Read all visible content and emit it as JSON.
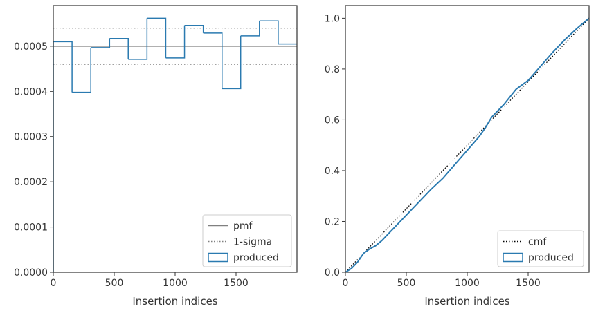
{
  "chart_data": [
    {
      "type": "histogram",
      "xlabel": "Insertion indices",
      "ylabel": "",
      "xlim": [
        0,
        2000
      ],
      "ylim": [
        0,
        0.00059
      ],
      "xticks": [
        0,
        500,
        1000,
        1500
      ],
      "xtick_labels": [
        "0",
        "500",
        "1000",
        "1500"
      ],
      "yticks": [
        0,
        0.0001,
        0.0002,
        0.0003,
        0.0004,
        0.0005
      ],
      "ytick_labels": [
        "0.0000",
        "0.0001",
        "0.0002",
        "0.0003",
        "0.0004",
        "0.0005"
      ],
      "pmf": 0.0005,
      "sigma_lines": [
        0.00046,
        0.00054
      ],
      "bin_edges": [
        0,
        154,
        308,
        462,
        615,
        769,
        923,
        1077,
        1231,
        1385,
        1538,
        1692,
        1846,
        2000
      ],
      "bin_values": [
        0.00051,
        0.000398,
        0.000497,
        0.000517,
        0.000471,
        0.000562,
        0.000474,
        0.000546,
        0.000529,
        0.000406,
        0.000523,
        0.000556,
        0.000505
      ],
      "colors": {
        "produced": "#2a7ab0",
        "pmf": "#808080",
        "sigma": "#808080"
      },
      "legend": {
        "position": "lower-right",
        "entries": [
          {
            "label": "pmf",
            "style": "solid"
          },
          {
            "label": "1-sigma",
            "style": "dotted"
          },
          {
            "label": "produced",
            "style": "patch"
          }
        ]
      }
    },
    {
      "type": "line",
      "xlabel": "Insertion indices",
      "ylabel": "",
      "xlim": [
        0,
        2000
      ],
      "ylim": [
        0,
        1.05
      ],
      "xticks": [
        0,
        500,
        1000,
        1500
      ],
      "xtick_labels": [
        "0",
        "500",
        "1000",
        "1500"
      ],
      "yticks": [
        0,
        0.2,
        0.4,
        0.6,
        0.8,
        1.0
      ],
      "ytick_labels": [
        "0.0",
        "0.2",
        "0.4",
        "0.6",
        "0.8",
        "1.0"
      ],
      "series": [
        {
          "name": "cmf",
          "style": "dotted",
          "color": "#000000",
          "x": [
            0,
            2000
          ],
          "y": [
            0,
            1.0
          ]
        },
        {
          "name": "produced",
          "style": "solid",
          "color": "#2a7ab0",
          "x": [
            0,
            50,
            100,
            150,
            200,
            250,
            300,
            350,
            400,
            500,
            600,
            700,
            800,
            900,
            1000,
            1100,
            1150,
            1200,
            1300,
            1350,
            1400,
            1500,
            1600,
            1700,
            1800,
            1900,
            2000
          ],
          "y": [
            0,
            0.015,
            0.04,
            0.075,
            0.092,
            0.105,
            0.125,
            0.15,
            0.175,
            0.225,
            0.275,
            0.325,
            0.37,
            0.425,
            0.48,
            0.535,
            0.57,
            0.61,
            0.66,
            0.69,
            0.72,
            0.755,
            0.81,
            0.865,
            0.915,
            0.96,
            1.0
          ]
        }
      ],
      "legend": {
        "position": "lower-right",
        "entries": [
          {
            "label": "cmf",
            "style": "dotted"
          },
          {
            "label": "produced",
            "style": "patch"
          }
        ]
      }
    }
  ]
}
